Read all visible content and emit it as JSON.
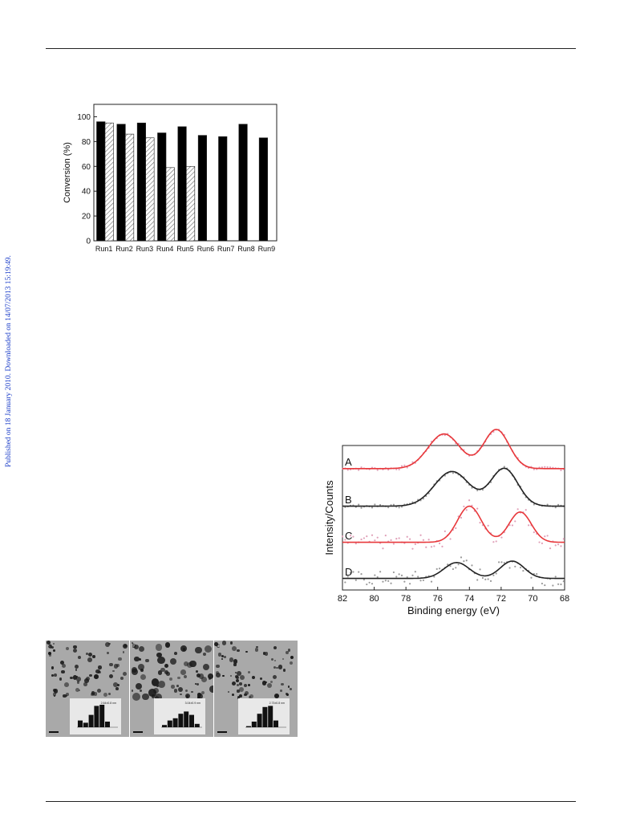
{
  "side_note": "Published on 18 January 2010. Downloaded on 14/07/2013 15:19:49.",
  "chart_data": [
    {
      "type": "bar",
      "categories": [
        "Run1",
        "Run2",
        "Run3",
        "Run4",
        "Run5",
        "Run6",
        "Run7",
        "Run8",
        "Run9"
      ],
      "series": [
        {
          "fill": "#000000",
          "values": [
            96,
            94,
            95,
            87,
            92,
            85,
            84,
            94,
            83
          ]
        },
        {
          "fill": "hatched",
          "values": [
            95,
            86,
            83,
            59,
            60,
            null,
            null,
            null,
            null
          ]
        }
      ],
      "xlabel": "",
      "ylabel": "Conversion (%)",
      "ylim": [
        0,
        110
      ],
      "yticks": [
        0,
        20,
        40,
        60,
        80,
        100
      ]
    },
    {
      "type": "line",
      "xlabel": "Binding energy (eV)",
      "ylabel": "Intensity/Counts",
      "xlim": [
        82,
        68
      ],
      "xticks": [
        82,
        80,
        78,
        76,
        74,
        72,
        70,
        68
      ],
      "series": [
        {
          "name": "A",
          "color": "#e8383b",
          "baseline": 0.84,
          "peaks": [
            [
              75.6,
              0.24,
              1.0
            ],
            [
              72.3,
              0.27,
              0.8
            ]
          ]
        },
        {
          "name": "B",
          "color": "#222222",
          "baseline": 0.58,
          "peaks": [
            [
              75.1,
              0.24,
              1.1
            ],
            [
              71.8,
              0.26,
              0.85
            ]
          ]
        },
        {
          "name": "C",
          "color": "#e8383b",
          "baseline": 0.33,
          "peaks": [
            [
              74.0,
              0.25,
              0.75
            ],
            [
              70.8,
              0.21,
              0.7
            ]
          ]
        },
        {
          "name": "D",
          "color": "#222222",
          "baseline": 0.08,
          "peaks": [
            [
              74.8,
              0.11,
              0.8
            ],
            [
              71.3,
              0.12,
              0.75
            ]
          ]
        }
      ]
    }
  ],
  "tem_figure": {
    "panels": [
      {
        "label": "a",
        "peak_label": "2.64±0.8 nm"
      },
      {
        "label": "b",
        "peak_label": "3.04±0.9 nm"
      },
      {
        "label": "c",
        "peak_label": "2.73±0.8 nm"
      }
    ]
  }
}
